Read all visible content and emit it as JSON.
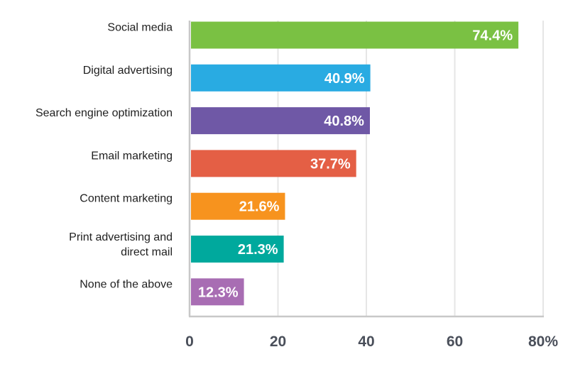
{
  "chart_data": {
    "type": "bar",
    "orientation": "horizontal",
    "categories": [
      "Social media",
      "Digital advertising",
      "Search engine optimization",
      "Email marketing",
      "Content marketing",
      "Print advertising and direct mail",
      "None of the above"
    ],
    "category_lines": [
      [
        "Social media"
      ],
      [
        "Digital advertising"
      ],
      [
        "Search engine optimization"
      ],
      [
        "Email marketing"
      ],
      [
        "Content marketing"
      ],
      [
        "Print advertising and",
        "direct mail"
      ],
      [
        "None of the above"
      ]
    ],
    "values": [
      74.4,
      40.9,
      40.8,
      37.7,
      21.6,
      21.3,
      12.3
    ],
    "value_labels": [
      "74.4%",
      "40.9%",
      "40.8%",
      "37.7%",
      "21.6%",
      "21.3%",
      "12.3%"
    ],
    "colors": [
      "#7ac143",
      "#29abe2",
      "#6f58a6",
      "#e45f45",
      "#f7931e",
      "#00a99d",
      "#a86db3"
    ],
    "xlim": [
      0,
      80
    ],
    "xticks": [
      0,
      20,
      40,
      60,
      80
    ],
    "xtick_labels": [
      "0",
      "20",
      "40",
      "60",
      "80%"
    ],
    "grid": true,
    "grid_color": "#e6e6e6",
    "axis_color": "#c8c8c8",
    "value_label_color": "#ffffff",
    "title": "",
    "xlabel": "",
    "ylabel": ""
  }
}
